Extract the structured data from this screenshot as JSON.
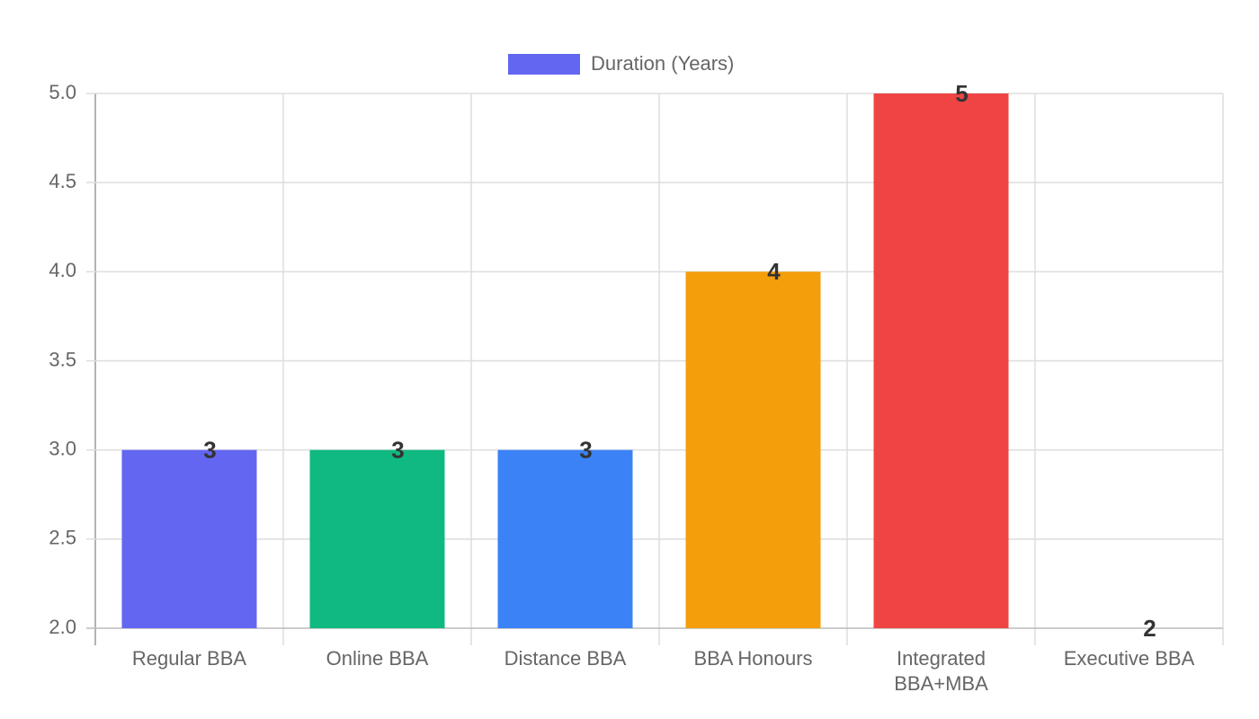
{
  "chart_data": {
    "type": "bar",
    "categories": [
      "Regular BBA",
      "Online BBA",
      "Distance BBA",
      "BBA Honours",
      [
        "Integrated",
        "BBA+MBA"
      ],
      "Executive BBA"
    ],
    "series": [
      {
        "name": "Duration (Years)",
        "color": "#6366f1",
        "colors": [
          "#6366f1",
          "#10b981",
          "#3b82f6",
          "#f59e0b",
          "#ef4444",
          "#8b5cf6"
        ],
        "values": [
          3,
          3,
          3,
          4,
          5,
          2
        ]
      }
    ],
    "ylim": [
      2,
      5
    ],
    "yticks": [
      {
        "value": 2,
        "label": "2.0"
      },
      2.5,
      {
        "value": 3,
        "label": "3.0"
      },
      3.5,
      {
        "value": 4,
        "label": "4.0"
      },
      4.5,
      {
        "value": 5,
        "label": "5.0"
      }
    ],
    "grid": true,
    "legend": "top"
  }
}
